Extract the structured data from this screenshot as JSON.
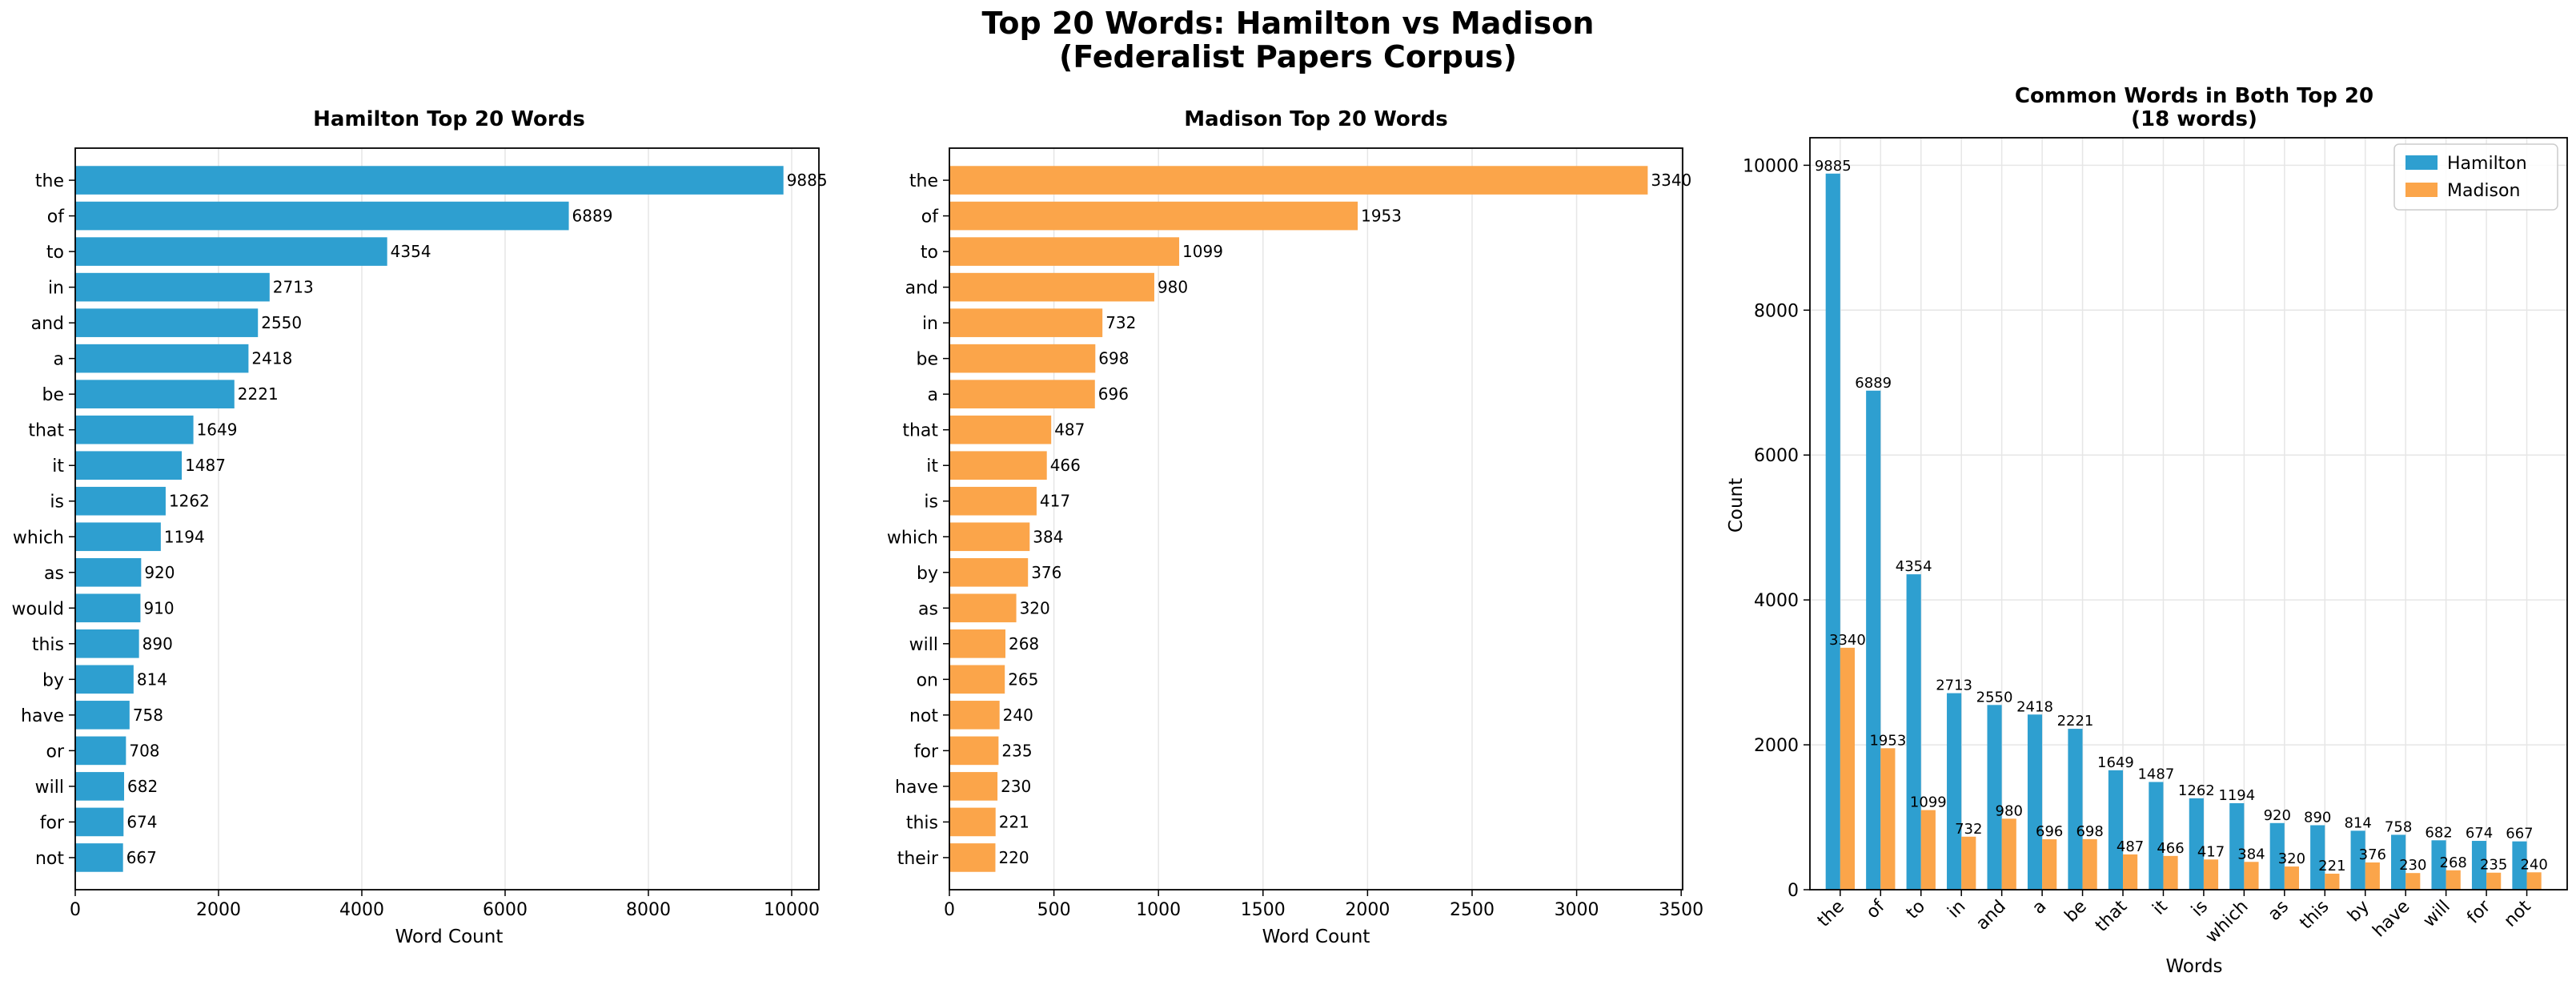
{
  "figure": {
    "title_line1": "Top 20 Words: Hamilton vs Madison",
    "title_line2": "(Federalist Papers Corpus)"
  },
  "colors": {
    "hamilton": "#2e9fd0",
    "madison": "#fba54a",
    "grid": "#e6e6e6"
  },
  "chart_data": [
    {
      "type": "bar",
      "orientation": "horizontal",
      "title": "Hamilton Top 20 Words",
      "xlabel": "Word Count",
      "ylabel": "",
      "xlim": [
        0,
        10380
      ],
      "xticks": [
        0,
        2000,
        4000,
        6000,
        8000,
        10000
      ],
      "grid": "x",
      "categories": [
        "the",
        "of",
        "to",
        "in",
        "and",
        "a",
        "be",
        "that",
        "it",
        "is",
        "which",
        "as",
        "would",
        "this",
        "by",
        "have",
        "or",
        "will",
        "for",
        "not"
      ],
      "values": [
        9885,
        6889,
        4354,
        2713,
        2550,
        2418,
        2221,
        1649,
        1487,
        1262,
        1194,
        920,
        910,
        890,
        814,
        758,
        708,
        682,
        674,
        667
      ]
    },
    {
      "type": "bar",
      "orientation": "horizontal",
      "title": "Madison Top 20 Words",
      "xlabel": "Word Count",
      "ylabel": "",
      "xlim": [
        0,
        3507
      ],
      "xticks": [
        0,
        500,
        1000,
        1500,
        2000,
        2500,
        3000,
        3500
      ],
      "grid": "x",
      "categories": [
        "the",
        "of",
        "to",
        "and",
        "in",
        "be",
        "a",
        "that",
        "it",
        "is",
        "which",
        "by",
        "as",
        "will",
        "on",
        "not",
        "for",
        "have",
        "this",
        "their"
      ],
      "values": [
        3340,
        1953,
        1099,
        980,
        732,
        698,
        696,
        487,
        466,
        417,
        384,
        376,
        320,
        268,
        265,
        240,
        235,
        230,
        221,
        220
      ]
    },
    {
      "type": "bar",
      "orientation": "vertical",
      "title": "Common Words in Both Top 20",
      "subtitle": "(18 words)",
      "xlabel": "Words",
      "ylabel": "Count",
      "ylim": [
        0,
        10380
      ],
      "yticks": [
        0,
        2000,
        4000,
        6000,
        8000,
        10000
      ],
      "grid": "both",
      "legend": "top-right",
      "categories": [
        "the",
        "of",
        "to",
        "in",
        "and",
        "a",
        "be",
        "that",
        "it",
        "is",
        "which",
        "as",
        "this",
        "by",
        "have",
        "will",
        "for",
        "not"
      ],
      "series": [
        {
          "name": "Hamilton",
          "values": [
            9885,
            6889,
            4354,
            2713,
            2550,
            2418,
            2221,
            1649,
            1487,
            1262,
            1194,
            920,
            890,
            814,
            758,
            682,
            674,
            667
          ]
        },
        {
          "name": "Madison",
          "values": [
            3340,
            1953,
            1099,
            732,
            980,
            696,
            698,
            487,
            466,
            417,
            384,
            320,
            221,
            376,
            230,
            268,
            235,
            240
          ]
        }
      ]
    }
  ]
}
